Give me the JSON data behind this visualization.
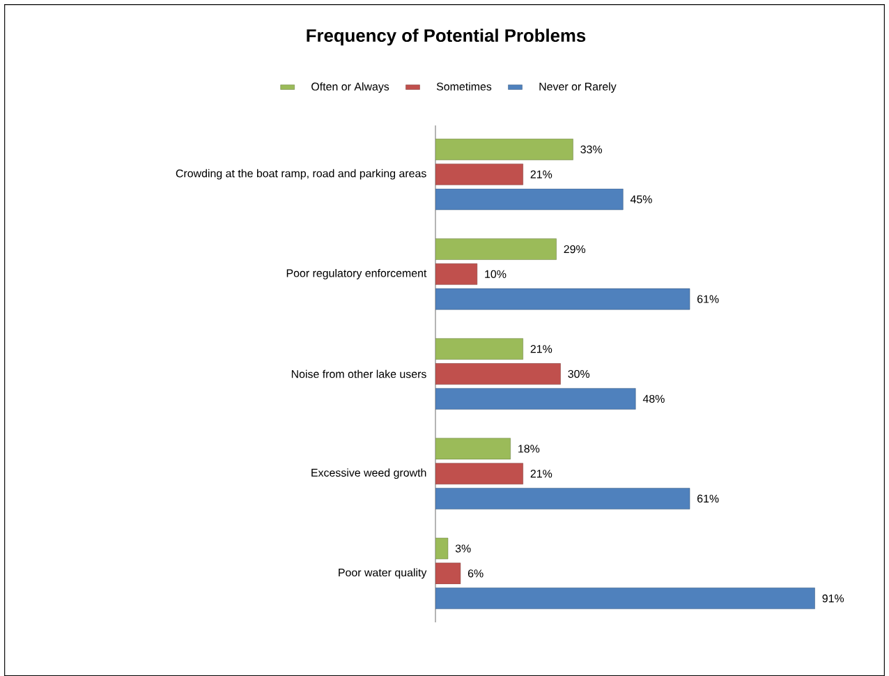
{
  "chart_data": {
    "type": "bar",
    "orientation": "horizontal",
    "title": "Frequency of Potential Problems",
    "legend": "top",
    "categories": [
      "Crowding at the boat ramp, road and parking areas",
      "Poor regulatory enforcement",
      "Noise from other lake users",
      "Excessive weed growth",
      "Poor water quality"
    ],
    "series": [
      {
        "name": "Often or Always",
        "color": "#9bbb59",
        "values": [
          33,
          29,
          21,
          18,
          3
        ],
        "value_labels": [
          "33%",
          "29%",
          "21%",
          "18%",
          "3%"
        ]
      },
      {
        "name": "Sometimes",
        "color": "#c0504d",
        "values": [
          21,
          10,
          30,
          21,
          6
        ],
        "value_labels": [
          "21%",
          "10%",
          "30%",
          "21%",
          "6%"
        ]
      },
      {
        "name": "Never or Rarely",
        "color": "#4f81bd",
        "values": [
          45,
          61,
          48,
          61,
          91
        ],
        "value_labels": [
          "45%",
          "61%",
          "48%",
          "61%",
          "91%"
        ]
      }
    ]
  }
}
